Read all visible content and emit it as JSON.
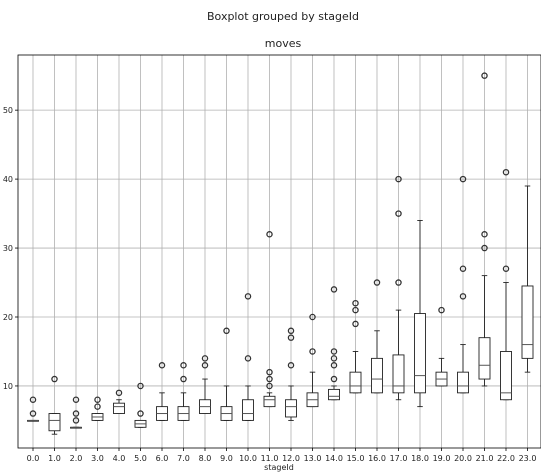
{
  "chart_data": {
    "type": "boxplot",
    "suptitle": "Boxplot grouped by stageId",
    "title": "moves",
    "xlabel": "stageId",
    "ylabel": "",
    "ylim": [
      1,
      58
    ],
    "yticks": [
      10,
      20,
      30,
      40,
      50
    ],
    "grid": true,
    "categories": [
      "0.0",
      "1.0",
      "2.0",
      "3.0",
      "4.0",
      "5.0",
      "6.0",
      "7.0",
      "8.0",
      "9.0",
      "10.0",
      "11.0",
      "12.0",
      "13.0",
      "14.0",
      "15.0",
      "16.0",
      "17.0",
      "18.0",
      "19.0",
      "20.0",
      "21.0",
      "22.0",
      "23.0"
    ],
    "boxes": [
      {
        "category": "0.0",
        "whislo": 5,
        "q1": 5,
        "med": 5,
        "q3": 5,
        "whishi": 5,
        "fliers": [
          6,
          8
        ]
      },
      {
        "category": "1.0",
        "whislo": 3,
        "q1": 3.5,
        "med": 5,
        "q3": 6,
        "whishi": 6,
        "fliers": [
          11
        ]
      },
      {
        "category": "2.0",
        "whislo": 4,
        "q1": 4,
        "med": 4,
        "q3": 4,
        "whishi": 4,
        "fliers": [
          5,
          6,
          8
        ]
      },
      {
        "category": "3.0",
        "whislo": 5,
        "q1": 5,
        "med": 5.5,
        "q3": 6,
        "whishi": 6,
        "fliers": [
          7,
          8
        ]
      },
      {
        "category": "4.0",
        "whislo": 6,
        "q1": 6,
        "med": 7,
        "q3": 7.5,
        "whishi": 8,
        "fliers": [
          9
        ]
      },
      {
        "category": "5.0",
        "whislo": 4,
        "q1": 4,
        "med": 4.5,
        "q3": 5,
        "whishi": 5,
        "fliers": [
          6,
          10
        ]
      },
      {
        "category": "6.0",
        "whislo": 5,
        "q1": 5,
        "med": 6,
        "q3": 7,
        "whishi": 9,
        "fliers": [
          13
        ]
      },
      {
        "category": "7.0",
        "whislo": 5,
        "q1": 5,
        "med": 6,
        "q3": 7,
        "whishi": 9,
        "fliers": [
          11,
          13
        ]
      },
      {
        "category": "8.0",
        "whislo": 6,
        "q1": 6,
        "med": 7,
        "q3": 8,
        "whishi": 11,
        "fliers": [
          13,
          14
        ]
      },
      {
        "category": "9.0",
        "whislo": 5,
        "q1": 5,
        "med": 6,
        "q3": 7,
        "whishi": 10,
        "fliers": [
          18
        ]
      },
      {
        "category": "10.0",
        "whislo": 5,
        "q1": 5,
        "med": 6,
        "q3": 8,
        "whishi": 10,
        "fliers": [
          14,
          23
        ]
      },
      {
        "category": "11.0",
        "whislo": 7,
        "q1": 7,
        "med": 8,
        "q3": 8.5,
        "whishi": 9,
        "fliers": [
          10,
          11,
          12,
          32
        ]
      },
      {
        "category": "12.0",
        "whislo": 5,
        "q1": 5.5,
        "med": 7,
        "q3": 8,
        "whishi": 10,
        "fliers": [
          13,
          17,
          18
        ]
      },
      {
        "category": "13.0",
        "whislo": 7,
        "q1": 7,
        "med": 8,
        "q3": 9,
        "whishi": 12,
        "fliers": [
          15,
          20
        ]
      },
      {
        "category": "14.0",
        "whislo": 8,
        "q1": 8,
        "med": 8.5,
        "q3": 9.5,
        "whishi": 10,
        "fliers": [
          11,
          13,
          14,
          15,
          24
        ]
      },
      {
        "category": "15.0",
        "whislo": 9,
        "q1": 9,
        "med": 10,
        "q3": 12,
        "whishi": 15,
        "fliers": [
          19,
          21,
          22
        ]
      },
      {
        "category": "16.0",
        "whislo": 9,
        "q1": 9,
        "med": 11,
        "q3": 14,
        "whishi": 18,
        "fliers": [
          25
        ]
      },
      {
        "category": "17.0",
        "whislo": 8,
        "q1": 9,
        "med": 10,
        "q3": 14.5,
        "whishi": 21,
        "fliers": [
          25,
          35,
          40
        ]
      },
      {
        "category": "18.0",
        "whislo": 7,
        "q1": 9,
        "med": 11.5,
        "q3": 20.5,
        "whishi": 34,
        "fliers": []
      },
      {
        "category": "19.0",
        "whislo": 10,
        "q1": 10,
        "med": 11,
        "q3": 12,
        "whishi": 14,
        "fliers": [
          21
        ]
      },
      {
        "category": "20.0",
        "whislo": 9,
        "q1": 9,
        "med": 10,
        "q3": 12,
        "whishi": 16,
        "fliers": [
          23,
          27,
          40
        ]
      },
      {
        "category": "21.0",
        "whislo": 10,
        "q1": 11,
        "med": 13,
        "q3": 17,
        "whishi": 26,
        "fliers": [
          30,
          32,
          55
        ]
      },
      {
        "category": "22.0",
        "whislo": 8,
        "q1": 8,
        "med": 9,
        "q3": 15,
        "whishi": 25,
        "fliers": [
          27,
          41
        ]
      },
      {
        "category": "23.0",
        "whislo": 12,
        "q1": 14,
        "med": 16,
        "q3": 24.5,
        "whishi": 39,
        "fliers": []
      }
    ]
  }
}
